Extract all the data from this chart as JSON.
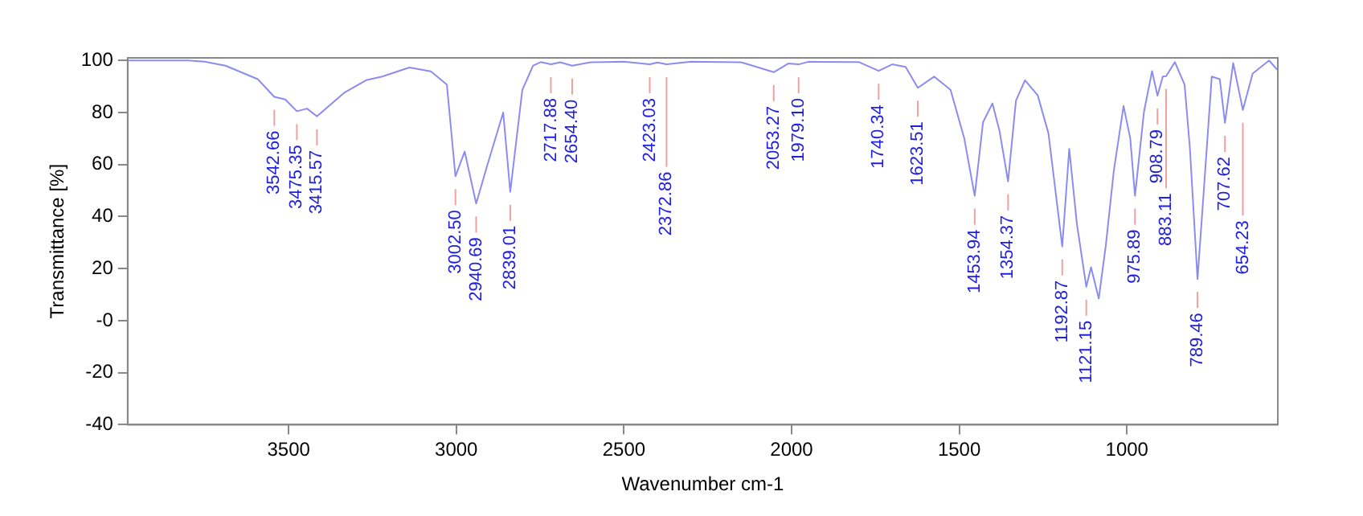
{
  "chart_data": {
    "type": "line",
    "xlabel": "Wavenumber cm-1",
    "ylabel": "Transmittance [%]",
    "xlim": [
      3980,
      550
    ],
    "xticks": [
      3500,
      3000,
      2500,
      2000,
      1500,
      1000
    ],
    "ylim": [
      -40,
      101
    ],
    "yticks": [
      -40,
      -20,
      {
        "value": 0,
        "label": "-0"
      },
      20,
      40,
      60,
      80,
      100
    ],
    "grid": false,
    "legend": false,
    "marker": "none",
    "line_style": "solid",
    "series": [
      {
        "color": "#8c8cf0",
        "x": [
          3977,
          3800,
          3750,
          3688,
          3592,
          3542.66,
          3510,
          3475.35,
          3445,
          3415.57,
          3333,
          3269,
          3221,
          3140,
          3076,
          3028,
          3002.5,
          2975,
          2940.69,
          2908,
          2860,
          2839.01,
          2803,
          2771,
          2747,
          2717.88,
          2690,
          2654.4,
          2600,
          2500,
          2423.03,
          2400,
          2372.86,
          2300,
          2150,
          2053.27,
          2010,
          1979.1,
          1950,
          1800,
          1740.34,
          1700,
          1660,
          1623.51,
          1575,
          1526,
          1485,
          1453.94,
          1429,
          1401,
          1380,
          1354.37,
          1331,
          1304,
          1266,
          1234,
          1192.87,
          1172,
          1149,
          1121.15,
          1107,
          1084,
          1063,
          1039,
          1010,
          990,
          975.89,
          949,
          925,
          908.79,
          893,
          883.11,
          857,
          828,
          812,
          789.46,
          771,
          747,
          723,
          707.62,
          683,
          654.23,
          625,
          576,
          552
        ],
        "values": [
          100,
          100,
          99.5,
          98,
          92.8,
          86,
          85,
          80.5,
          81.5,
          78.5,
          87.7,
          92.4,
          93.8,
          97.3,
          95.8,
          90.7,
          55.5,
          65,
          45,
          59.5,
          80,
          49.5,
          88.7,
          98,
          99.4,
          98.5,
          99.3,
          98,
          99.3,
          99.5,
          98.5,
          99.2,
          98.5,
          99.5,
          99.3,
          95.5,
          98.8,
          98.5,
          99.5,
          99.4,
          96,
          98.5,
          97.5,
          89.5,
          93.8,
          88.7,
          70,
          48,
          76.3,
          83.5,
          73,
          53.5,
          84.5,
          92.4,
          86.6,
          72,
          28.5,
          66,
          37,
          13,
          20.5,
          8.5,
          28.8,
          57.7,
          82.5,
          70,
          48,
          80.4,
          95.9,
          86.5,
          93.8,
          94,
          99.4,
          90.7,
          66,
          16,
          49.4,
          93.8,
          92.8,
          76,
          99,
          81,
          95,
          100,
          96.5
        ]
      }
    ],
    "annotations": [
      {
        "text": "3542.66",
        "x": 3542.66,
        "y": 86
      },
      {
        "text": "3475.35",
        "x": 3475.35,
        "y": 80.5
      },
      {
        "text": "3415.57",
        "x": 3415.57,
        "y": 78.5
      },
      {
        "text": "3002.50",
        "x": 3002.5,
        "y": 55.5
      },
      {
        "text": "2940.69",
        "x": 2940.69,
        "y": 45
      },
      {
        "text": "2839.01",
        "x": 2839.01,
        "y": 49.5
      },
      {
        "text": "2717.88",
        "x": 2717.88,
        "y": 98.5
      },
      {
        "text": "2654.40",
        "x": 2654.4,
        "y": 98
      },
      {
        "text": "2423.03",
        "x": 2423.03,
        "y": 98.5
      },
      {
        "text": "2372.86",
        "x": 2372.86,
        "y": 98.5
      },
      {
        "text": "2053.27",
        "x": 2053.27,
        "y": 95.5
      },
      {
        "text": "1979.10",
        "x": 1979.1,
        "y": 98.5
      },
      {
        "text": "1740.34",
        "x": 1740.34,
        "y": 96
      },
      {
        "text": "1623.51",
        "x": 1623.51,
        "y": 89.5
      },
      {
        "text": "1453.94",
        "x": 1453.94,
        "y": 48
      },
      {
        "text": "1354.37",
        "x": 1354.37,
        "y": 53.5
      },
      {
        "text": "1192.87",
        "x": 1192.87,
        "y": 28.5
      },
      {
        "text": "1121.15",
        "x": 1121.15,
        "y": 13
      },
      {
        "text": "975.89",
        "x": 975.89,
        "y": 48
      },
      {
        "text": "908.79",
        "x": 908.79,
        "y": 86.5
      },
      {
        "text": "883.11",
        "x": 883.11,
        "y": 94
      },
      {
        "text": "789.46",
        "x": 789.46,
        "y": 16
      },
      {
        "text": "707.62",
        "x": 707.62,
        "y": 76
      },
      {
        "text": "654.23",
        "x": 654.23,
        "y": 81
      }
    ]
  }
}
